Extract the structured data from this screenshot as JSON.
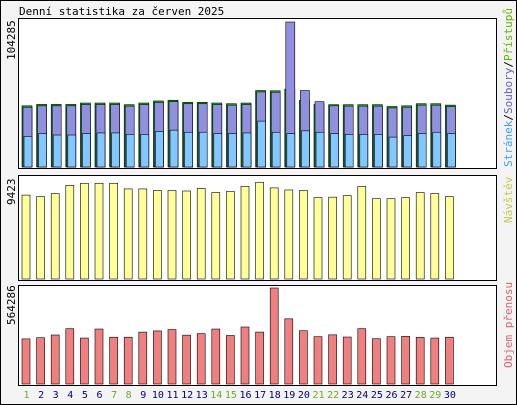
{
  "title": "Denní statistika za červen 2025",
  "colors": {
    "background": "#f4f4f4",
    "border": "#000000",
    "pristupy": "#00cc00",
    "soubory": "#9090e0",
    "stranky": "#80c8ff",
    "navstevy": "#ffff99",
    "objem": "#f08080",
    "weekend_label": "#6aaa24",
    "weekday_label": "#000080"
  },
  "chart_data": [
    {
      "type": "bar",
      "name": "top",
      "max_label": "104285",
      "legend": [
        "Přístupů",
        "Soubory",
        "Stránek"
      ],
      "legend_separator": "/",
      "ylim": [
        0,
        104285
      ],
      "series": [
        {
          "name": "Přístupů",
          "values": [
            44000,
            45000,
            45000,
            45000,
            46000,
            46000,
            46000,
            44800,
            46000,
            47500,
            48000,
            46500,
            46500,
            46000,
            45500,
            46000,
            55000,
            54800,
            56000,
            48000,
            45000,
            44800,
            44800,
            44800,
            44800,
            43500,
            44000,
            45500,
            45500,
            44500
          ]
        },
        {
          "name": "Soubory",
          "values": [
            43000,
            44000,
            44000,
            44000,
            45000,
            45000,
            45000,
            43800,
            45000,
            46500,
            47000,
            45500,
            45500,
            45000,
            44500,
            45000,
            54000,
            53800,
            104285,
            55000,
            47000,
            44000,
            43800,
            43800,
            43800,
            42500,
            43000,
            44500,
            44500,
            43500
          ]
        },
        {
          "name": "Stránek",
          "values": [
            22000,
            24000,
            23000,
            23000,
            24000,
            24500,
            24500,
            23500,
            23500,
            25500,
            26500,
            25000,
            25000,
            24000,
            24000,
            24500,
            33000,
            25000,
            24000,
            26000,
            25000,
            24000,
            23500,
            23500,
            23500,
            21500,
            22500,
            24000,
            25000,
            24000
          ]
        }
      ]
    },
    {
      "type": "bar",
      "name": "middle",
      "max_label": "9423",
      "legend": [
        "Návštěv"
      ],
      "ylim": [
        0,
        9423
      ],
      "series": [
        {
          "name": "Návštěv",
          "values": [
            8150,
            8000,
            8300,
            9100,
            9300,
            9300,
            9300,
            8750,
            8750,
            8600,
            8600,
            8550,
            8800,
            8400,
            8500,
            9000,
            9400,
            8850,
            8650,
            8600,
            7900,
            7950,
            8100,
            9000,
            7800,
            7800,
            7900,
            8400,
            8300,
            8000
          ]
        }
      ]
    },
    {
      "type": "bar",
      "name": "bottom",
      "max_label": "564286",
      "legend": [
        "Objem přenosu"
      ],
      "ylim": [
        0,
        564286
      ],
      "series": [
        {
          "name": "Objem přenosu",
          "values": [
            265000,
            272000,
            288000,
            325000,
            270000,
            323000,
            275000,
            275000,
            305000,
            312000,
            320000,
            287000,
            296000,
            323000,
            285000,
            335000,
            305000,
            564286,
            383000,
            313000,
            278000,
            289000,
            276000,
            325000,
            266000,
            278000,
            280000,
            274000,
            270000,
            275000
          ]
        }
      ]
    }
  ],
  "days": [
    "1",
    "2",
    "3",
    "4",
    "5",
    "6",
    "7",
    "8",
    "9",
    "10",
    "11",
    "12",
    "13",
    "14",
    "15",
    "16",
    "17",
    "18",
    "19",
    "20",
    "21",
    "22",
    "23",
    "24",
    "25",
    "26",
    "27",
    "28",
    "29",
    "30"
  ],
  "weekend_days": [
    "1",
    "7",
    "8",
    "14",
    "15",
    "21",
    "22",
    "28",
    "29"
  ]
}
